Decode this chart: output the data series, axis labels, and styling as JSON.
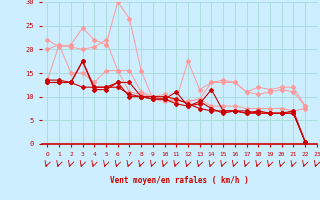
{
  "bg_color": "#cceeff",
  "grid_color": "#aadddd",
  "xlabel": "Vent moyen/en rafales ( km/h )",
  "xlim": [
    -0.5,
    23
  ],
  "ylim": [
    0,
    30
  ],
  "yticks": [
    0,
    5,
    10,
    15,
    20,
    25,
    30
  ],
  "xticks": [
    0,
    1,
    2,
    3,
    4,
    5,
    6,
    7,
    8,
    9,
    10,
    11,
    12,
    13,
    14,
    15,
    16,
    17,
    18,
    19,
    20,
    21,
    22,
    23
  ],
  "series_dark": [
    [
      13.0,
      13.0,
      13.0,
      17.5,
      12.0,
      12.0,
      13.0,
      13.0,
      10.0,
      9.5,
      9.5,
      11.0,
      8.0,
      8.5,
      11.5,
      7.0,
      7.0,
      7.0,
      6.5,
      6.5,
      6.5,
      6.5,
      0.5
    ],
    [
      13.5,
      13.5,
      13.0,
      17.5,
      11.5,
      11.5,
      13.0,
      10.0,
      10.0,
      9.5,
      9.5,
      8.5,
      8.0,
      9.0,
      7.5,
      6.5,
      7.0,
      6.5,
      7.0,
      6.5,
      6.5,
      7.0,
      0.5
    ],
    [
      13.0,
      13.0,
      13.0,
      12.0,
      12.0,
      12.0,
      12.0,
      10.5,
      10.0,
      10.0,
      10.0,
      9.5,
      8.5,
      7.5,
      7.0,
      7.0,
      7.0,
      6.5,
      6.5,
      6.5,
      6.5,
      6.5,
      0.5
    ]
  ],
  "series_light": [
    [
      22.0,
      20.5,
      21.0,
      24.5,
      22.0,
      21.0,
      30.0,
      26.5,
      15.5,
      9.5,
      9.0,
      9.5,
      17.5,
      11.5,
      13.0,
      13.5,
      13.0,
      11.0,
      12.0,
      11.5,
      12.0,
      12.0,
      8.0
    ],
    [
      20.0,
      21.0,
      20.5,
      20.0,
      20.5,
      22.0,
      15.5,
      15.5,
      11.0,
      10.0,
      10.5,
      9.0,
      9.0,
      9.5,
      13.0,
      13.0,
      13.0,
      11.0,
      10.5,
      11.0,
      11.5,
      11.0,
      8.0
    ],
    [
      13.5,
      21.0,
      15.0,
      15.0,
      13.0,
      15.5,
      15.5,
      11.0,
      10.5,
      10.0,
      9.5,
      9.0,
      9.0,
      9.5,
      8.0,
      8.0,
      8.0,
      7.5,
      7.5,
      7.5,
      7.5,
      7.0,
      7.5
    ]
  ],
  "color_dark": "#cc0000",
  "color_light": "#ff9999",
  "marker_size": 2.0
}
